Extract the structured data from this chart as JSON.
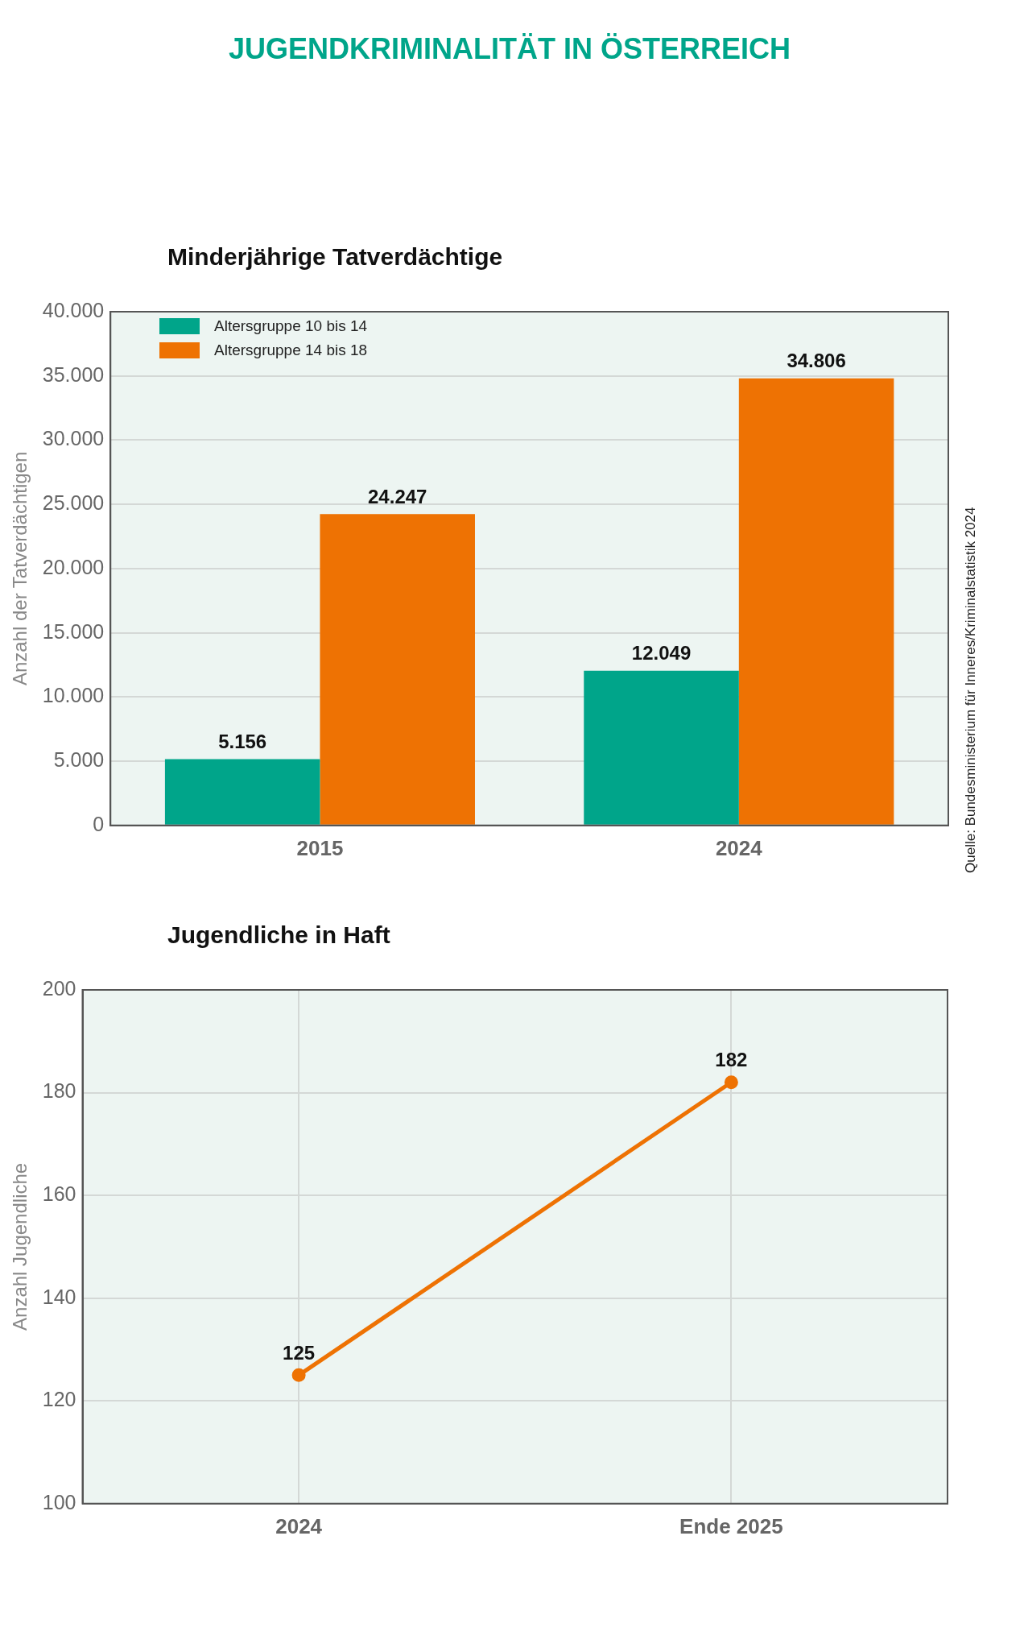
{
  "chart_data": [
    {
      "type": "bar",
      "title": "JUGENDKRIMINALITÄT IN ÖSTERREICH",
      "subtitle": "Minderjährige Tatverdächtige",
      "ylabel": "Anzahl der Tatverdächtigen",
      "categories": [
        "2015",
        "2024"
      ],
      "series": [
        {
          "name": "Altersgruppe 10 bis 14",
          "color": "#00a58a",
          "values": [
            5156,
            12049
          ],
          "value_labels": [
            "5.156",
            "12.049"
          ]
        },
        {
          "name": "Altersgruppe 14 bis 18",
          "color": "#ee7203",
          "values": [
            24247,
            34806
          ],
          "value_labels": [
            "24.247",
            "34.806"
          ]
        }
      ],
      "ylim": [
        0,
        40000
      ],
      "yticks": [
        {
          "value": 0,
          "label": "0"
        },
        {
          "value": 5000,
          "label": "5.000"
        },
        {
          "value": 10000,
          "label": "10.000"
        },
        {
          "value": 15000,
          "label": "15.000"
        },
        {
          "value": 20000,
          "label": "20.000"
        },
        {
          "value": 25000,
          "label": "25.000"
        },
        {
          "value": 30000,
          "label": "30.000"
        },
        {
          "value": 35000,
          "label": "35.000"
        },
        {
          "value": 40000,
          "label": "40.000"
        }
      ],
      "grid": "y",
      "legend": "top left",
      "annotations": [
        "Quelle: Bundesministerium für Inneres/Kriminalstatistik 2024"
      ]
    },
    {
      "type": "line",
      "title": "Jugendliche in Haft",
      "ylabel": "Anzahl Jugendliche",
      "categories": [
        "2024",
        "Ende 2025"
      ],
      "series": [
        {
          "color": "#ee7203",
          "values": [
            125,
            182
          ]
        }
      ],
      "ylim": [
        100,
        200
      ],
      "yticks": [
        100,
        120,
        140,
        160,
        180,
        200
      ],
      "grid": true,
      "marker": "circle",
      "data_labels": true
    }
  ]
}
